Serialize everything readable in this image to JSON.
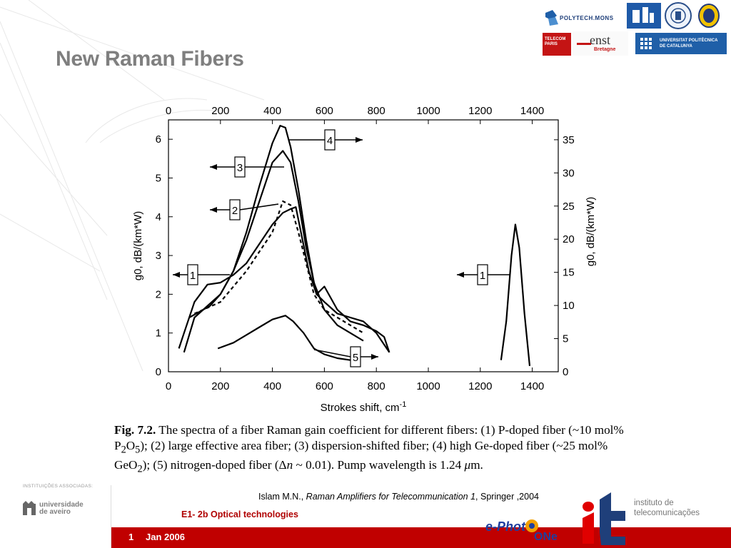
{
  "slide": {
    "title": "New Raman Fibers",
    "caption_fig": "Fig. 7.2.",
    "caption_html": " The spectra of a fiber Raman gain coefficient for different fibers: (1) P-doped fiber (~10 mol% P<sub>2</sub>O<sub>5</sub>); (2) large effective area fiber; (3) dispersion-shifted fiber; (4) high Ge-doped fiber (~25 mol% GeO<sub>2</sub>); (5) nitrogen-doped fiber (Δ<i>n</i> ~ 0.01). Pump wavelength is 1.24 <i>μ</i>m.",
    "citation_author": "Islam M.N., ",
    "citation_title": "Raman Amplifiers for Telecommunication 1",
    "citation_rest": ", Springer ,2004",
    "course": "E1- 2b Optical technologies",
    "page_number": "1",
    "date": "Jan 2006"
  },
  "logos": {
    "polytech": "POLYTECH.MONS",
    "upc": "UNIVERSITAT POLITÈCNICA DE CATALUNYA",
    "enst": "enst",
    "enst_sub": "Bretagne",
    "telecom": "TELECOM PARIS",
    "associated": "INSTITUIÇÕES ASSOCIADAS:",
    "aveiro_1": "universidade",
    "aveiro_2": "de aveiro",
    "it_1": "instituto de",
    "it_2": "telecomunicações",
    "ephoton_1": "e-Phot",
    "ephoton_2": "ONe"
  },
  "chart_data": {
    "type": "line",
    "xlabel": "Strokes shift, cm",
    "xlabel_sup": "-1",
    "ylabel_left": "g0, dB/(km*W)",
    "ylabel_right": "g0, dB/(km*W)",
    "xlim": [
      0,
      1500
    ],
    "ylim_left": [
      0,
      6.5
    ],
    "ylim_right": [
      0,
      38
    ],
    "x_ticks": [
      "0",
      "200",
      "400",
      "600",
      "800",
      "1000",
      "1200",
      "1400"
    ],
    "y_ticks_left": [
      "0",
      "1",
      "2",
      "3",
      "4",
      "5",
      "6"
    ],
    "y_ticks_right": [
      "0",
      "5",
      "10",
      "15",
      "20",
      "25",
      "30",
      "35"
    ],
    "labels": [
      "1",
      "2",
      "3",
      "4",
      "1",
      "5"
    ],
    "series": [
      {
        "name": "1",
        "x": [
          40,
          60,
          100,
          150,
          200,
          250,
          300,
          350,
          400,
          440,
          470,
          490,
          510,
          540,
          570,
          600,
          650,
          700,
          750,
          800,
          830,
          850
        ],
        "y": [
          0.6,
          1.0,
          1.8,
          2.25,
          2.3,
          2.5,
          2.8,
          3.3,
          3.8,
          4.1,
          4.2,
          4.25,
          3.6,
          2.6,
          2.0,
          2.2,
          1.6,
          1.3,
          1.2,
          1.05,
          0.9,
          0.5
        ]
      },
      {
        "name": "1b",
        "x": [
          1280,
          1300,
          1320,
          1335,
          1350,
          1370,
          1390
        ],
        "y": [
          0.3,
          1.3,
          3.0,
          3.8,
          3.2,
          1.5,
          0.15
        ]
      },
      {
        "name": "2",
        "x": [
          100,
          150,
          200,
          250,
          300,
          350,
          400,
          440,
          470,
          500,
          530,
          560,
          600,
          650,
          700,
          750
        ],
        "y": [
          1.5,
          1.65,
          1.8,
          2.2,
          2.6,
          3.1,
          3.6,
          4.4,
          4.3,
          3.6,
          2.8,
          2.0,
          1.6,
          1.4,
          1.2,
          1.0
        ]
      },
      {
        "name": "3",
        "x": [
          60,
          100,
          150,
          200,
          250,
          300,
          350,
          400,
          440,
          470,
          500,
          530,
          570,
          600,
          650,
          700,
          750,
          800,
          850
        ],
        "y": [
          0.5,
          1.4,
          1.7,
          2.0,
          2.6,
          3.4,
          4.4,
          5.4,
          5.7,
          5.4,
          4.4,
          3.2,
          2.0,
          1.8,
          1.5,
          1.4,
          1.3,
          1.0,
          0.5
        ]
      },
      {
        "name": "4",
        "x": [
          80,
          120,
          160,
          200,
          250,
          300,
          350,
          400,
          430,
          450,
          470,
          500,
          530,
          560,
          600,
          650,
          700,
          750
        ],
        "y": [
          1.4,
          1.55,
          1.7,
          2.0,
          2.6,
          3.6,
          4.8,
          5.9,
          6.35,
          6.3,
          5.8,
          4.7,
          3.4,
          2.3,
          1.6,
          1.2,
          1.0,
          0.8
        ]
      },
      {
        "name": "5",
        "x": [
          190,
          250,
          300,
          350,
          400,
          450,
          480,
          520,
          560,
          600,
          650,
          700,
          720
        ],
        "y": [
          0.6,
          0.75,
          0.95,
          1.15,
          1.35,
          1.45,
          1.3,
          1.0,
          0.6,
          0.45,
          0.35,
          0.3,
          0.3
        ]
      }
    ]
  }
}
